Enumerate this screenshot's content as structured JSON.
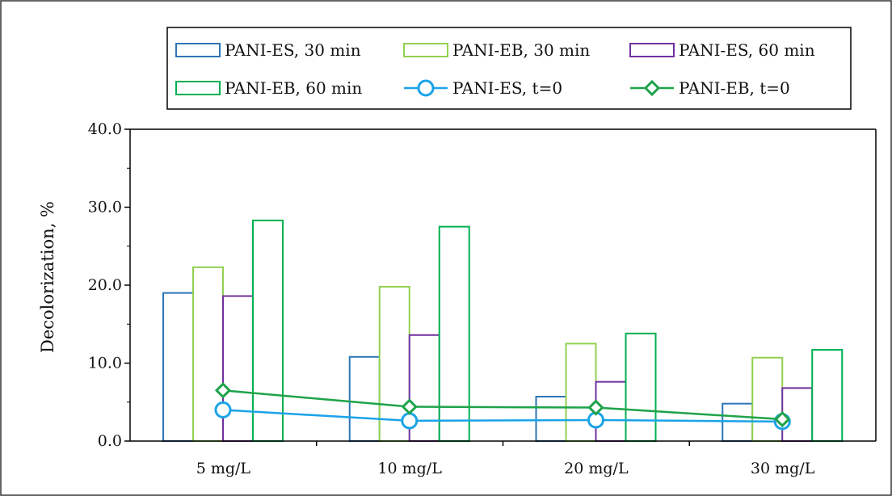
{
  "chart_data": {
    "type": "bar",
    "title": "",
    "xlabel": "",
    "ylabel": "Decolorization, %",
    "ylim": [
      0,
      40
    ],
    "yticks": [
      "0.0",
      "10.0",
      "20.0",
      "30.0",
      "40.0"
    ],
    "categories": [
      "5 mg/L",
      "10 mg/L",
      "20 mg/L",
      "30 mg/L"
    ],
    "grid": false,
    "legend_position": "top",
    "series": [
      {
        "name": "PANI-ES, 30 min",
        "kind": "bar",
        "color": "#2e75b6",
        "values": [
          19.0,
          10.8,
          5.7,
          4.8
        ]
      },
      {
        "name": "PANI-EB, 30 min",
        "kind": "bar",
        "color": "#92d050",
        "values": [
          22.3,
          19.8,
          12.5,
          10.7
        ]
      },
      {
        "name": "PANI-ES, 60 min",
        "kind": "bar",
        "color": "#7030a0",
        "values": [
          18.6,
          13.6,
          7.6,
          6.8
        ]
      },
      {
        "name": "PANI-EB, 60 min",
        "kind": "bar",
        "color": "#00b050",
        "values": [
          28.3,
          27.5,
          13.8,
          11.7
        ]
      },
      {
        "name": "PANI-ES, t=0",
        "kind": "line",
        "marker": "circle",
        "color": "#1aa3e8",
        "values": [
          4.0,
          2.6,
          2.7,
          2.5
        ]
      },
      {
        "name": "PANI-EB, t=0",
        "kind": "line",
        "marker": "diamond",
        "color": "#1fa34a",
        "values": [
          6.5,
          4.4,
          4.3,
          2.8
        ]
      }
    ]
  }
}
